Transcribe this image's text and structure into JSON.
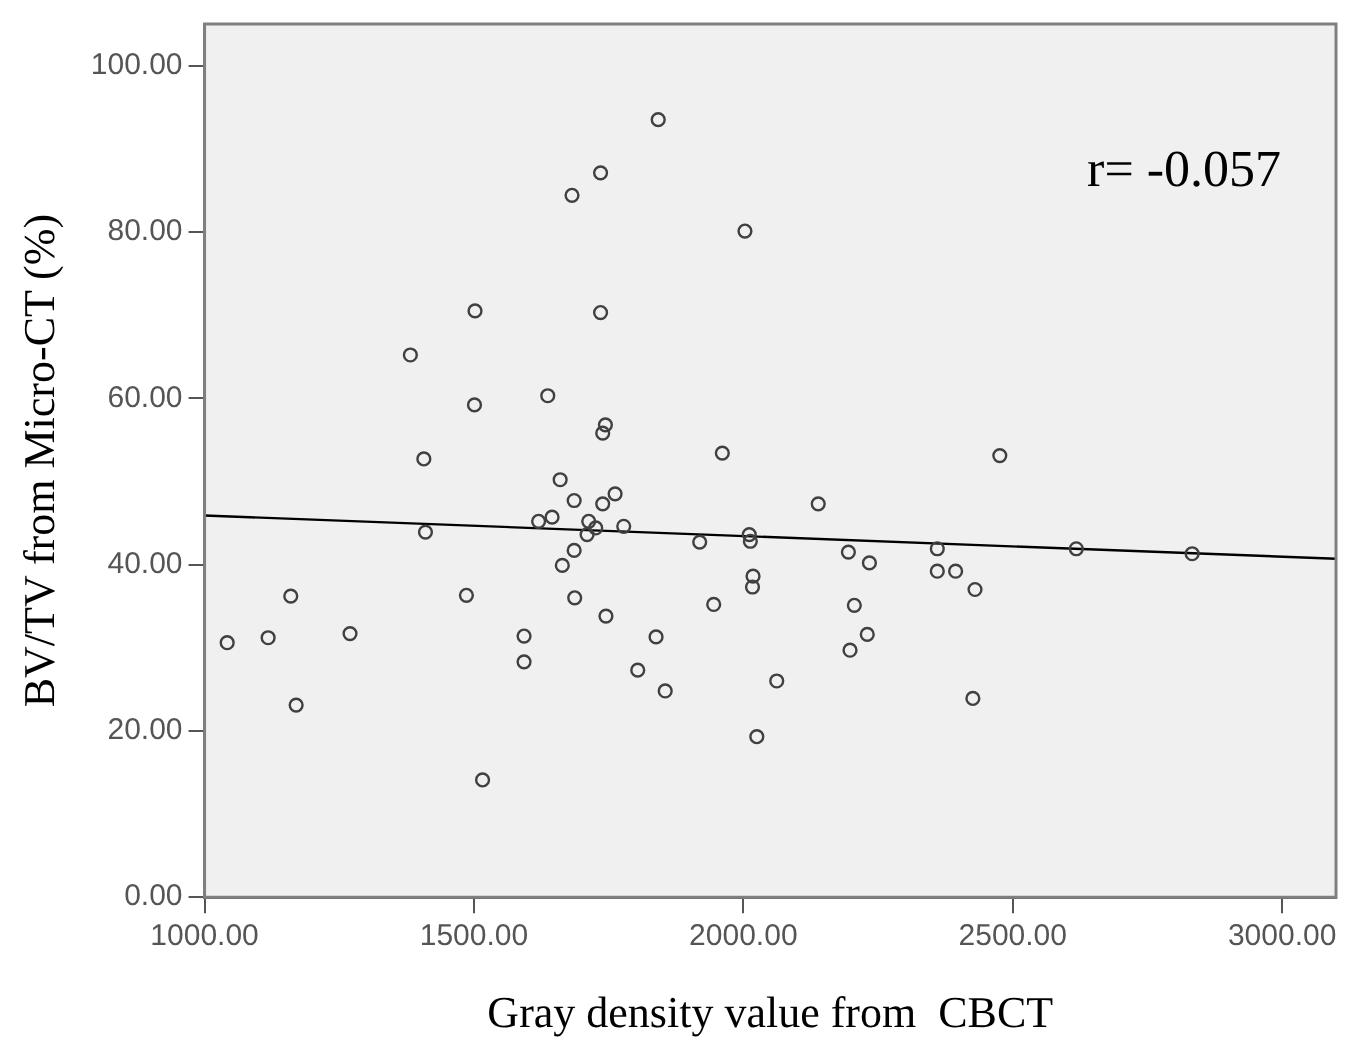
{
  "chart_data": {
    "type": "scatter",
    "xlabel": "Gray density value from  CBCT",
    "ylabel": "BV/TV from Micro-CT (%)",
    "xlim": [
      1000,
      3100
    ],
    "ylim": [
      0,
      105
    ],
    "xticks": [
      {
        "value": 1000,
        "label": "1000.00"
      },
      {
        "value": 1500,
        "label": "1500.00"
      },
      {
        "value": 2000,
        "label": "2000.00"
      },
      {
        "value": 2500,
        "label": "2500.00"
      },
      {
        "value": 3000,
        "label": "3000.00"
      }
    ],
    "yticks": [
      {
        "value": 0,
        "label": "0.00"
      },
      {
        "value": 20,
        "label": "20.00"
      },
      {
        "value": 40,
        "label": "40.00"
      },
      {
        "value": 60,
        "label": "60.00"
      },
      {
        "value": 80,
        "label": "80.00"
      },
      {
        "value": 100,
        "label": "100.00"
      }
    ],
    "grid": false,
    "legend": false,
    "marker": "circle",
    "annotations": [
      "r= -0.057"
    ],
    "series": [
      {
        "type": "scatter",
        "color": "#404040",
        "x": [
          1842,
          1735,
          1682,
          2003,
          1502,
          1735,
          1382,
          1501,
          1637,
          1744,
          1739,
          1407,
          1961,
          2476,
          1410,
          1660,
          1686,
          1739,
          1762,
          1620,
          1645,
          1713,
          1726,
          1710,
          1778,
          1686,
          1664,
          1687,
          1745,
          1919,
          2011,
          2013,
          1945,
          1838,
          1804,
          1855,
          1593,
          1593,
          1486,
          1516,
          1042,
          1118,
          1160,
          1170,
          1270,
          2025,
          2139,
          2018,
          2017,
          2062,
          2195,
          2234,
          2206,
          2230,
          2198,
          2360,
          2360,
          2394,
          2430,
          2426,
          2618,
          2833
        ],
        "values": [
          93.5,
          87.1,
          84.4,
          80.1,
          70.5,
          70.3,
          65.2,
          59.2,
          60.3,
          56.8,
          55.8,
          52.7,
          53.4,
          53.1,
          43.9,
          50.2,
          47.7,
          47.3,
          48.5,
          45.2,
          45.7,
          45.2,
          44.4,
          43.6,
          44.6,
          41.7,
          39.9,
          36.0,
          33.8,
          42.7,
          43.6,
          42.8,
          35.2,
          31.3,
          27.3,
          24.8,
          31.4,
          28.3,
          36.3,
          14.1,
          30.6,
          31.2,
          36.2,
          23.1,
          31.7,
          19.3,
          47.3,
          38.6,
          37.3,
          26.0,
          41.5,
          40.2,
          35.1,
          31.6,
          29.7,
          41.9,
          39.2,
          39.2,
          37.0,
          23.9,
          41.9,
          41.3
        ]
      },
      {
        "type": "line",
        "color": "#000000",
        "marker": "none",
        "x": [
          1000,
          3100
        ],
        "values": [
          45.9,
          40.7
        ]
      }
    ]
  }
}
